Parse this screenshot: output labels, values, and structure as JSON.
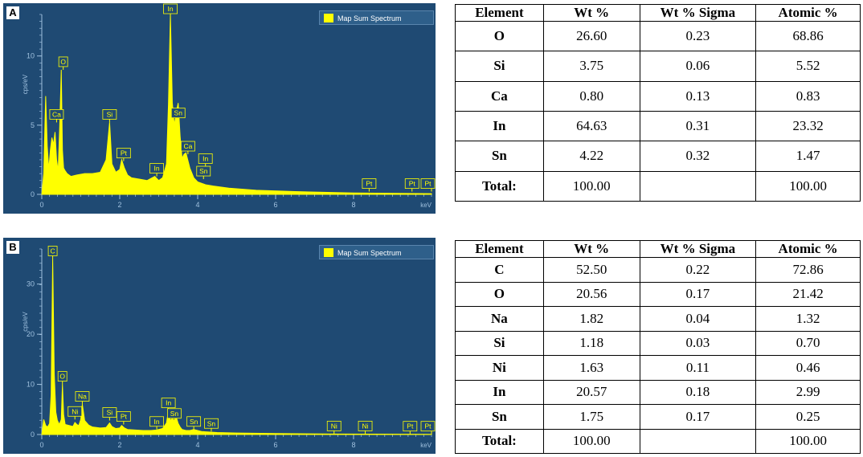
{
  "chart_data": [
    {
      "type": "line",
      "panel_label": "A",
      "legend": "Map Sum Spectrum",
      "ylabel": "cps/eV",
      "xunit": "keV",
      "xlim": [
        0,
        10
      ],
      "ylim": [
        0,
        13
      ],
      "x_ticks": [
        0,
        2,
        4,
        6,
        8
      ],
      "y_ticks": [
        0,
        5,
        10
      ],
      "series": [
        {
          "name": "Map Sum Spectrum",
          "x": [
            0.0,
            0.05,
            0.1,
            0.14,
            0.18,
            0.22,
            0.26,
            0.3,
            0.34,
            0.38,
            0.42,
            0.46,
            0.5,
            0.53,
            0.56,
            0.6,
            0.65,
            0.75,
            0.9,
            1.1,
            1.3,
            1.5,
            1.65,
            1.74,
            1.8,
            1.9,
            2.0,
            2.05,
            2.12,
            2.2,
            2.3,
            2.5,
            2.7,
            2.9,
            3.0,
            3.1,
            3.2,
            3.25,
            3.3,
            3.35,
            3.4,
            3.45,
            3.5,
            3.55,
            3.6,
            3.65,
            3.7,
            3.8,
            3.9,
            4.0,
            4.1,
            4.2,
            4.4,
            4.8,
            5.5,
            6.5,
            8.0,
            10.0
          ],
          "y": [
            0,
            1.5,
            7.1,
            3.5,
            1.8,
            3.2,
            4.1,
            3.6,
            4.5,
            2.5,
            1.7,
            4.9,
            9.0,
            3.2,
            1.9,
            1.7,
            1.5,
            1.3,
            1.4,
            1.5,
            1.5,
            1.6,
            2.5,
            5.2,
            2.2,
            1.6,
            1.8,
            2.5,
            1.9,
            1.4,
            1.2,
            1.1,
            1.0,
            1.3,
            1.0,
            1.2,
            2.2,
            6.5,
            13.0,
            6.6,
            5.0,
            5.9,
            6.6,
            4.2,
            2.6,
            2.9,
            3.0,
            1.9,
            1.2,
            0.9,
            0.8,
            0.7,
            0.6,
            0.45,
            0.3,
            0.2,
            0.1,
            0.05
          ]
        }
      ],
      "annotations": [
        {
          "label": "O",
          "x": 0.55,
          "y": 9.0
        },
        {
          "label": "Ca",
          "x": 0.38,
          "y": 5.2
        },
        {
          "label": "Si",
          "x": 1.74,
          "y": 5.2
        },
        {
          "label": "Pt",
          "x": 2.1,
          "y": 2.4
        },
        {
          "label": "In",
          "x": 2.95,
          "y": 1.3
        },
        {
          "label": "In",
          "x": 3.3,
          "y": 13.0
        },
        {
          "label": "Sn",
          "x": 3.5,
          "y": 5.3
        },
        {
          "label": "Ca",
          "x": 3.75,
          "y": 2.9
        },
        {
          "label": "In",
          "x": 4.2,
          "y": 2.0
        },
        {
          "label": "Sn",
          "x": 4.15,
          "y": 1.1
        },
        {
          "label": "Pt",
          "x": 8.4,
          "y": 0.2
        },
        {
          "label": "Pt",
          "x": 9.5,
          "y": 0.2
        },
        {
          "label": "Pt",
          "x": 10.0,
          "y": 0.2
        }
      ]
    },
    {
      "type": "line",
      "panel_label": "B",
      "legend": "Map Sum Spectrum",
      "ylabel": "cps/eV",
      "xunit": "keV",
      "xlim": [
        0,
        10
      ],
      "ylim": [
        0,
        37
      ],
      "x_ticks": [
        0,
        2,
        4,
        6,
        8
      ],
      "y_ticks": [
        0,
        10,
        20,
        30
      ],
      "series": [
        {
          "name": "Map Sum Spectrum",
          "x": [
            0.0,
            0.05,
            0.1,
            0.15,
            0.2,
            0.24,
            0.28,
            0.32,
            0.36,
            0.4,
            0.45,
            0.5,
            0.53,
            0.56,
            0.6,
            0.7,
            0.8,
            0.85,
            0.9,
            0.95,
            1.0,
            1.04,
            1.1,
            1.2,
            1.3,
            1.5,
            1.65,
            1.74,
            1.8,
            1.9,
            2.0,
            2.05,
            2.12,
            2.2,
            2.4,
            2.6,
            2.8,
            2.95,
            3.0,
            3.1,
            3.2,
            3.25,
            3.3,
            3.35,
            3.4,
            3.45,
            3.5,
            3.55,
            3.6,
            3.7,
            3.8,
            3.9,
            4.1,
            4.5,
            5.0,
            6.0,
            7.5,
            10.0
          ],
          "y": [
            0,
            3.0,
            1.8,
            1.5,
            2.2,
            8.0,
            35.0,
            12.0,
            4.5,
            2.8,
            2.0,
            3.0,
            10.0,
            4.0,
            2.0,
            1.8,
            1.6,
            2.4,
            2.0,
            1.8,
            3.0,
            6.0,
            2.8,
            1.9,
            1.5,
            1.3,
            1.4,
            2.3,
            1.6,
            1.2,
            1.3,
            1.8,
            1.3,
            1.0,
            0.9,
            0.8,
            0.8,
            0.9,
            1.0,
            1.2,
            2.3,
            4.7,
            2.8,
            3.2,
            2.6,
            3.5,
            2.2,
            1.5,
            1.0,
            0.8,
            0.8,
            1.0,
            0.6,
            0.4,
            0.3,
            0.2,
            0.1,
            0.05
          ]
        }
      ],
      "annotations": [
        {
          "label": "C",
          "x": 0.28,
          "y": 35.0
        },
        {
          "label": "O",
          "x": 0.53,
          "y": 10.0
        },
        {
          "label": "Na",
          "x": 1.04,
          "y": 6.0
        },
        {
          "label": "Ni",
          "x": 0.85,
          "y": 3.0
        },
        {
          "label": "Si",
          "x": 1.74,
          "y": 2.8
        },
        {
          "label": "Pt",
          "x": 2.1,
          "y": 2.0
        },
        {
          "label": "In",
          "x": 2.95,
          "y": 1.0
        },
        {
          "label": "In",
          "x": 3.25,
          "y": 4.7
        },
        {
          "label": "Sn",
          "x": 3.4,
          "y": 2.6
        },
        {
          "label": "Sn",
          "x": 3.9,
          "y": 1.0
        },
        {
          "label": "Sn",
          "x": 4.35,
          "y": 0.6
        },
        {
          "label": "Ni",
          "x": 7.5,
          "y": 0.1
        },
        {
          "label": "Ni",
          "x": 8.3,
          "y": 0.1
        },
        {
          "label": "Pt",
          "x": 9.45,
          "y": 0.05
        },
        {
          "label": "Pt",
          "x": 10.0,
          "y": 0.05
        }
      ]
    }
  ],
  "tables": [
    {
      "headers": [
        "Element",
        "Wt %",
        "Wt % Sigma",
        "Atomic %"
      ],
      "rows": [
        [
          "O",
          "26.60",
          "0.23",
          "68.86"
        ],
        [
          "Si",
          "3.75",
          "0.06",
          "5.52"
        ],
        [
          "Ca",
          "0.80",
          "0.13",
          "0.83"
        ],
        [
          "In",
          "64.63",
          "0.31",
          "23.32"
        ],
        [
          "Sn",
          "4.22",
          "0.32",
          "1.47"
        ],
        [
          "Total:",
          "100.00",
          "",
          "100.00"
        ]
      ]
    },
    {
      "headers": [
        "Element",
        "Wt %",
        "Wt % Sigma",
        "Atomic %"
      ],
      "rows": [
        [
          "C",
          "52.50",
          "0.22",
          "72.86"
        ],
        [
          "O",
          "20.56",
          "0.17",
          "21.42"
        ],
        [
          "Na",
          "1.82",
          "0.04",
          "1.32"
        ],
        [
          "Si",
          "1.18",
          "0.03",
          "0.70"
        ],
        [
          "Ni",
          "1.63",
          "0.11",
          "0.46"
        ],
        [
          "In",
          "20.57",
          "0.18",
          "2.99"
        ],
        [
          "Sn",
          "1.75",
          "0.17",
          "0.25"
        ],
        [
          "Total:",
          "100.00",
          "",
          "100.00"
        ]
      ]
    }
  ],
  "colors": {
    "panel_bg": "#1f4a73",
    "spectrum": "#ffff00",
    "axis_text": "#9fc0de"
  }
}
